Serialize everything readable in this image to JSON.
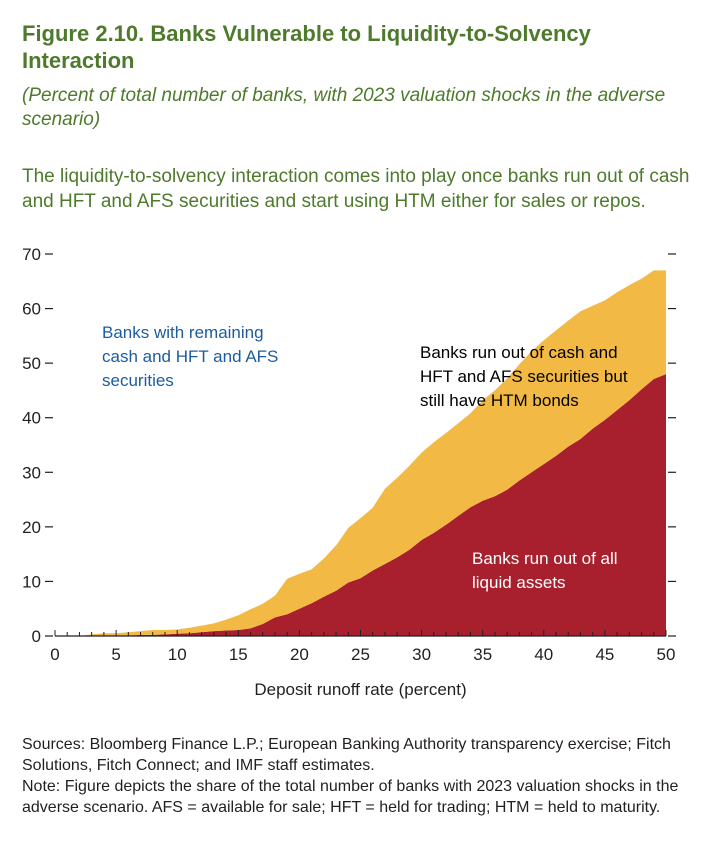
{
  "figure": {
    "title": "Figure 2.10. Banks Vulnerable to Liquidity-to-Solvency Interaction",
    "subtitle": "(Percent of total number of banks, with 2023 valuation shocks in the adverse scenario)",
    "description": "The liquidity-to-solvency interaction comes into play once banks run out of cash and HFT and AFS securities and start using HTM either for sales or repos.",
    "sources": "Sources: Bloomberg Finance L.P.; European Banking Authority transparency exercise; Fitch Solutions, Fitch Connect; and IMF staff estimates.",
    "note": "Note: Figure depicts the share of the total number of banks with 2023 valuation shocks in the adverse scenario. AFS = available for sale; HFT = held for trading; HTM = held to maturity."
  },
  "chart_data": {
    "type": "area",
    "stacked": true,
    "xlabel": "Deposit runoff rate (percent)",
    "ylabel": "",
    "xlim": [
      0,
      50
    ],
    "ylim": [
      0,
      70
    ],
    "x_ticks": [
      0,
      5,
      10,
      15,
      20,
      25,
      30,
      35,
      40,
      45,
      50
    ],
    "y_ticks": [
      0,
      10,
      20,
      30,
      40,
      50,
      60,
      70
    ],
    "x": [
      0,
      1,
      2,
      3,
      4,
      5,
      6,
      7,
      8,
      9,
      10,
      11,
      12,
      13,
      14,
      15,
      16,
      17,
      18,
      19,
      20,
      21,
      22,
      23,
      24,
      25,
      26,
      27,
      28,
      29,
      30,
      31,
      32,
      33,
      34,
      35,
      36,
      37,
      38,
      39,
      40,
      41,
      42,
      43,
      44,
      45,
      46,
      47,
      48,
      49,
      50
    ],
    "series": [
      {
        "name": "Banks run out of all liquid assets",
        "color": "#a81f2d",
        "values": [
          0,
          0,
          0,
          0,
          0,
          0.1,
          0.1,
          0.2,
          0.2,
          0.3,
          0.4,
          0.5,
          0.7,
          0.9,
          1.0,
          1.1,
          1.4,
          2.2,
          3.4,
          4.0,
          5.0,
          6.0,
          7.2,
          8.3,
          9.8,
          10.6,
          12.0,
          13.2,
          14.4,
          15.8,
          17.6,
          18.9,
          20.4,
          22.0,
          23.6,
          24.8,
          25.6,
          26.8,
          28.5,
          30.0,
          31.5,
          33.0,
          34.7,
          36.1,
          38.0,
          39.6,
          41.4,
          43.2,
          45.2,
          47.1,
          48.0
        ]
      },
      {
        "name": "Banks run out of cash and HFT and AFS securities but still have HTM bonds",
        "color": "#f2ba44",
        "values": [
          0,
          0,
          0,
          0.3,
          0.5,
          0.4,
          0.6,
          0.7,
          0.9,
          0.8,
          0.8,
          1.0,
          1.2,
          1.4,
          2.0,
          2.7,
          3.5,
          3.7,
          4.0,
          6.5,
          6.4,
          6.2,
          7.0,
          8.3,
          10.0,
          11.0,
          11.5,
          13.8,
          14.6,
          15.4,
          16.0,
          16.6,
          16.8,
          17.0,
          17.2,
          18.4,
          19.4,
          20.4,
          21.3,
          22.2,
          22.7,
          23.0,
          23.1,
          23.4,
          22.5,
          21.9,
          21.6,
          21.1,
          20.3,
          19.9,
          19.0
        ]
      }
    ],
    "annotations": [
      {
        "text": "Banks with remaining cash and HFT and AFS securities",
        "lines": [
          "Banks with remaining",
          "cash and HFT and AFS",
          "securities"
        ],
        "color": "#1b5c9e"
      },
      {
        "text": "Banks run out of cash and HFT and AFS securities but still have HTM bonds",
        "lines": [
          "Banks run out of cash and",
          "HFT and AFS securities but",
          "still have HTM bonds"
        ],
        "color": "#000000"
      },
      {
        "text": "Banks run out of all liquid assets",
        "lines": [
          "Banks run out of all",
          "liquid assets"
        ],
        "color": "#ffffff"
      }
    ]
  }
}
